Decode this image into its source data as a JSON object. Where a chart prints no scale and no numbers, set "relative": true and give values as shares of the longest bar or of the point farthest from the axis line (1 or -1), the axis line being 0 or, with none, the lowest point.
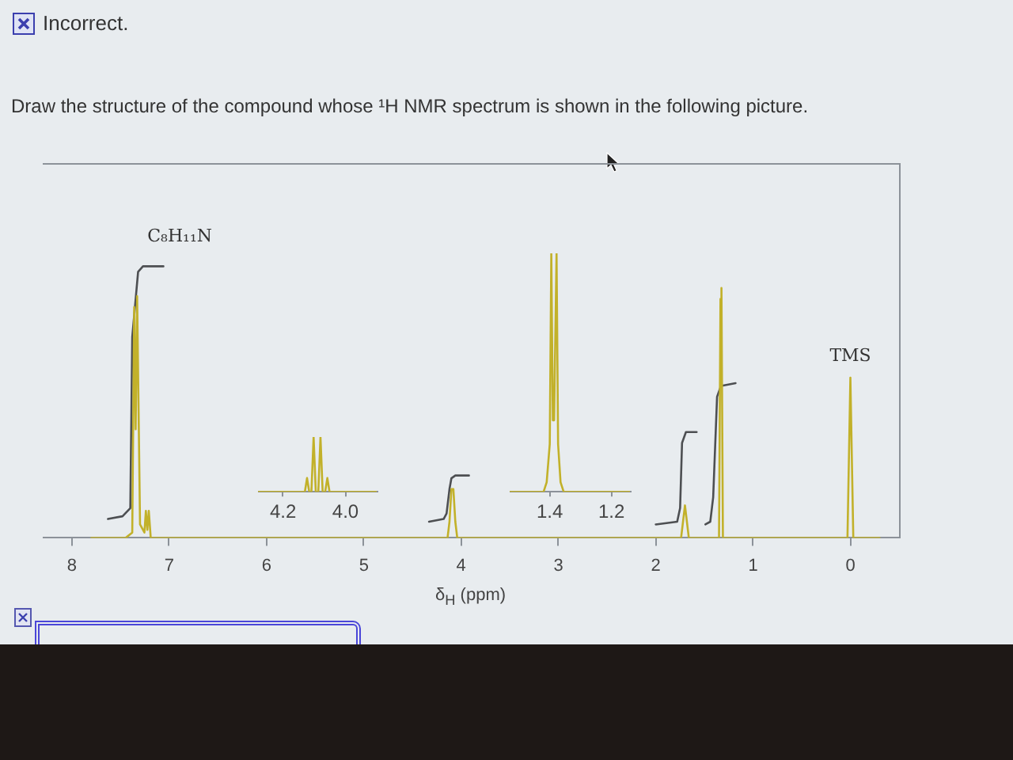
{
  "chart_data": [
    {
      "type": "line",
      "title": "Draw the structure of the compound whose ¹H NMR spectrum is shown in the following picture.",
      "subtitle": "Incorrect.",
      "xlabel": "δ$_{H}$ (ppm)",
      "relative": true,
      "xlim": [
        8.3,
        -0.5
      ],
      "xticks": [
        8,
        7,
        6,
        5,
        4,
        3,
        2,
        1,
        0
      ],
      "annotations": [
        "C₈H₁₁N",
        {
          "text": "TMS",
          "x": 0,
          "y": 0.59
        }
      ],
      "series": [
        {
          "color": "#c2b12a",
          "x": [
            7.8,
            7.45,
            7.38,
            7.36,
            7.345,
            7.33,
            7.3,
            7.255,
            7.24,
            7.225,
            7.21,
            7.19,
            4.14,
            4.12,
            4.1,
            4.08,
            4.06,
            4.04,
            1.74,
            1.7,
            1.66,
            1.35,
            1.335,
            1.325,
            1.31,
            0.03,
            0,
            -0.03,
            -0.3
          ],
          "values": [
            0,
            0,
            0.02,
            0.85,
            0.4,
            0.89,
            0.05,
            0.02,
            0.1,
            0.03,
            0.1,
            0,
            0,
            0.06,
            0.18,
            0.18,
            0.06,
            0,
            0,
            0.12,
            0,
            0,
            0.88,
            0.92,
            0,
            0,
            0.59,
            0,
            0
          ]
        },
        {
          "color": "#4d4f52",
          "x": [
            7.63,
            7.48,
            7.4,
            7.38,
            7.32,
            7.27,
            7.06,
            5.5,
            4.33,
            4.18,
            4.15,
            4.12,
            4.1,
            4.06,
            3.92,
            2.5,
            2,
            1.78,
            1.75,
            1.73,
            1.69,
            1.58,
            1.54,
            1.49,
            1.44,
            1.41,
            1.37,
            1.33,
            1.18
          ],
          "values": [
            0.07,
            0.08,
            0.11,
            0.74,
            0.98,
            1,
            1,
            null,
            0.06,
            0.07,
            0.09,
            0.18,
            0.22,
            0.23,
            0.23,
            null,
            0.05,
            0.06,
            0.11,
            0.35,
            0.39,
            0.39,
            null,
            0.05,
            0.06,
            0.15,
            0.52,
            0.56,
            0.57
          ]
        }
      ]
    },
    {
      "type": "line",
      "relative": true,
      "xlim": [
        4.28,
        3.9
      ],
      "xticks": [
        4.2,
        {
          "value": 4,
          "label": "4.0"
        }
      ],
      "series": [
        {
          "color": "#c2b12a",
          "x": [
            4.28,
            4.13,
            4.123,
            4.116,
            4.109,
            4.102,
            4.095,
            4.087,
            4.08,
            4.073,
            4.065,
            4.058,
            4.051,
            3.9
          ],
          "values": [
            0,
            0,
            0.25,
            0,
            0,
            1,
            0,
            0,
            1,
            0,
            0,
            0.25,
            0,
            0
          ]
        }
      ]
    },
    {
      "type": "line",
      "relative": true,
      "xlim": [
        1.53,
        1.14
      ],
      "xticks": [
        1.4,
        1.2
      ],
      "series": [
        {
          "color": "#c2b12a",
          "x": [
            1.53,
            1.42,
            1.41,
            1.4,
            1.395,
            1.39,
            1.386,
            1.382,
            1.378,
            1.373,
            1.365,
            1.355,
            1.14
          ],
          "values": [
            0,
            0,
            0.04,
            0.2,
            1,
            0.3,
            0.3,
            0.3,
            1,
            0.2,
            0.04,
            0,
            0
          ]
        }
      ]
    }
  ]
}
